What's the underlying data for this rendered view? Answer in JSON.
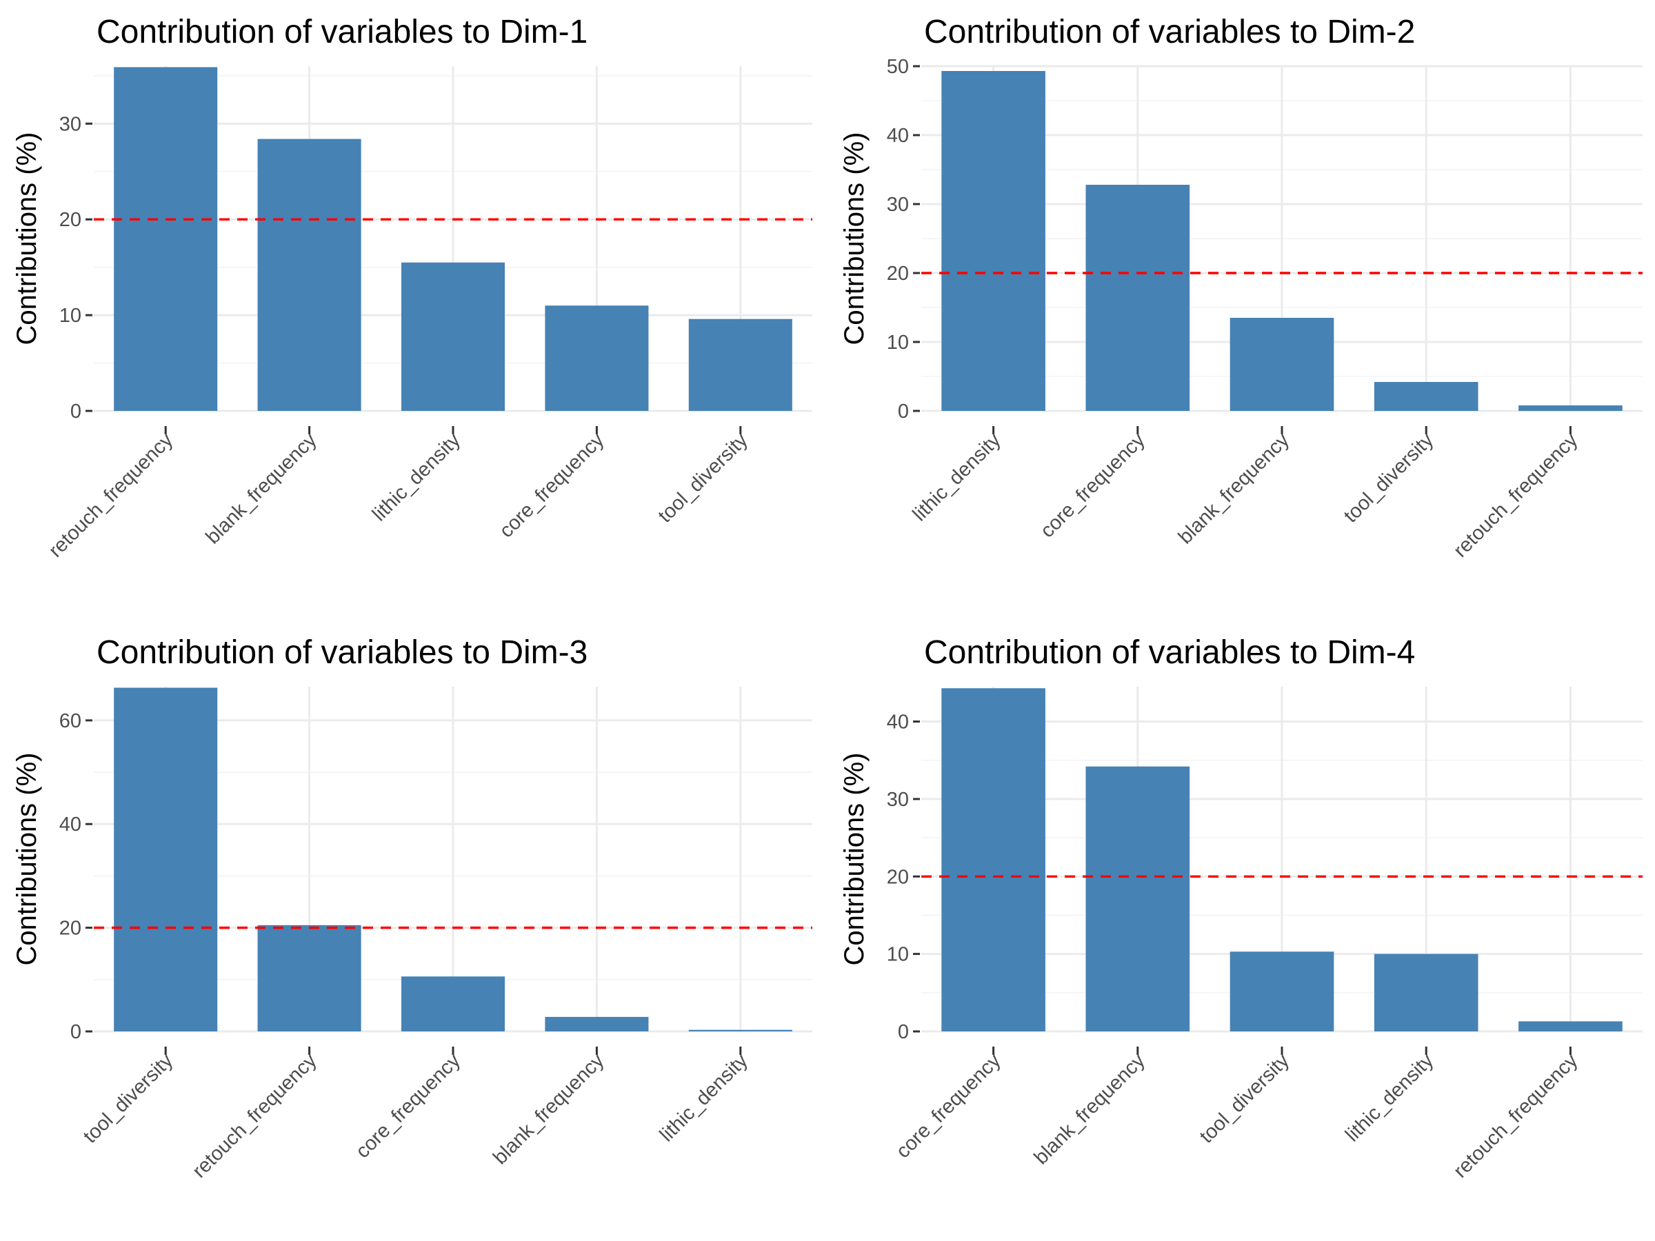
{
  "colors": {
    "bar": "#4682b4",
    "reference_line": "#ff0000"
  },
  "chart_data": [
    {
      "type": "bar",
      "title": "Contribution of variables to Dim-1",
      "ylabel": "Contributions (%)",
      "xlabel": "",
      "categories": [
        "retouch_frequency",
        "blank_frequency",
        "lithic_density",
        "core_frequency",
        "tool_diversity"
      ],
      "values": [
        35.9,
        28.4,
        15.5,
        11.0,
        9.6
      ],
      "ylim": [
        0,
        36
      ],
      "yticks": [
        0,
        10,
        20,
        30
      ],
      "reference_line": 20,
      "grid": true
    },
    {
      "type": "bar",
      "title": "Contribution of variables to Dim-2",
      "ylabel": "Contributions (%)",
      "xlabel": "",
      "categories": [
        "lithic_density",
        "core_frequency",
        "blank_frequency",
        "tool_diversity",
        "retouch_frequency"
      ],
      "values": [
        49.3,
        32.8,
        13.5,
        4.2,
        0.8
      ],
      "ylim": [
        0,
        50
      ],
      "yticks": [
        0,
        10,
        20,
        30,
        40,
        50
      ],
      "reference_line": 20,
      "grid": true
    },
    {
      "type": "bar",
      "title": "Contribution of variables to Dim-3",
      "ylabel": "Contributions (%)",
      "xlabel": "",
      "categories": [
        "tool_diversity",
        "retouch_frequency",
        "core_frequency",
        "blank_frequency",
        "lithic_density"
      ],
      "values": [
        66.3,
        20.5,
        10.6,
        2.8,
        0.3
      ],
      "ylim": [
        0,
        66.5
      ],
      "yticks": [
        0,
        20,
        40,
        60
      ],
      "reference_line": 20,
      "grid": true
    },
    {
      "type": "bar",
      "title": "Contribution of variables to Dim-4",
      "ylabel": "Contributions (%)",
      "xlabel": "",
      "categories": [
        "core_frequency",
        "blank_frequency",
        "tool_diversity",
        "lithic_density",
        "retouch_frequency"
      ],
      "values": [
        44.3,
        34.2,
        10.3,
        10.0,
        1.3
      ],
      "ylim": [
        0,
        44.5
      ],
      "yticks": [
        0,
        10,
        20,
        30,
        40
      ],
      "reference_line": 20,
      "grid": true
    }
  ]
}
